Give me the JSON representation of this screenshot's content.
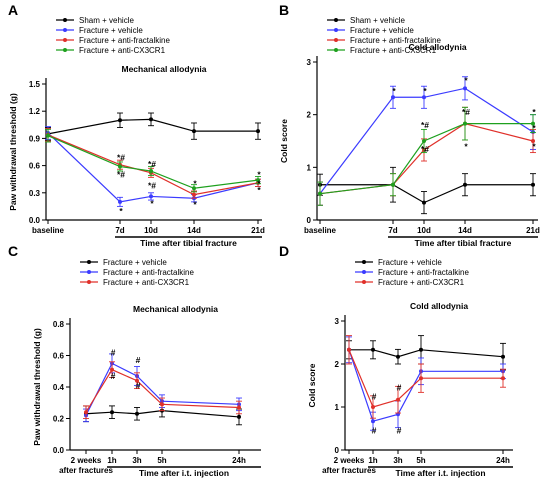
{
  "chart_data": [
    {
      "panel": "A",
      "type": "line",
      "title": "Mechanical allodynia",
      "ylabel": "Paw withdrawal threshold (g)",
      "xlabel": "Time after tibial fracture",
      "ylim": [
        0,
        1.5
      ],
      "yticks": [
        "0.0",
        "0.3",
        "0.6",
        "0.9",
        "1.2",
        "1.5"
      ],
      "x_labels": [
        "baseline",
        "7d",
        "10d",
        "14d",
        "21d"
      ],
      "legend": "top-left",
      "series": [
        {
          "name": "Sham + vehicle",
          "color": "#000000",
          "marker": "circle",
          "x": [
            0,
            7,
            10,
            14,
            21
          ],
          "y": [
            0.95,
            1.1,
            1.11,
            0.98,
            0.98
          ],
          "err": [
            0.07,
            0.08,
            0.07,
            0.09,
            0.09
          ]
        },
        {
          "name": "Fracture + vehicle",
          "color": "#3b3bff",
          "marker": "circle",
          "x": [
            0,
            7,
            10,
            14,
            21
          ],
          "y": [
            0.96,
            0.2,
            0.26,
            0.24,
            0.41
          ],
          "err": [
            0.07,
            0.05,
            0.04,
            0.04,
            0.04
          ]
        },
        {
          "name": "Fracture + anti-fractalkine",
          "color": "#e0302a",
          "marker": "circle",
          "x": [
            0,
            7,
            10,
            14,
            21
          ],
          "y": [
            0.94,
            0.61,
            0.52,
            0.28,
            0.41
          ],
          "err": [
            0.07,
            0.05,
            0.05,
            0.04,
            0.04
          ]
        },
        {
          "name": "Fracture + anti-CX3CR1",
          "color": "#1ea01e",
          "marker": "circle",
          "x": [
            0,
            7,
            10,
            14,
            21
          ],
          "y": [
            0.93,
            0.59,
            0.54,
            0.35,
            0.44
          ],
          "err": [
            0.07,
            0.05,
            0.05,
            0.04,
            0.04
          ]
        }
      ],
      "annotations": [
        {
          "text": "*#",
          "x": 7,
          "y": 0.69
        },
        {
          "text": "*#",
          "x": 7,
          "y": 0.5
        },
        {
          "text": "*",
          "x": 7,
          "y": 0.1
        },
        {
          "text": "*#",
          "x": 10,
          "y": 0.62
        },
        {
          "text": "*#",
          "x": 10,
          "y": 0.38
        },
        {
          "text": "*",
          "x": 10,
          "y": 0.18
        },
        {
          "text": "*",
          "x": 14,
          "y": 0.4
        },
        {
          "text": "*",
          "x": 14,
          "y": 0.17
        },
        {
          "text": "*",
          "x": 21,
          "y": 0.5
        },
        {
          "text": "*",
          "x": 21,
          "y": 0.4
        },
        {
          "text": "*",
          "x": 21,
          "y": 0.33
        }
      ]
    },
    {
      "panel": "B",
      "type": "line",
      "title": "Cold allodynia",
      "ylabel": "Cold score",
      "xlabel": "Time after tibial fracture",
      "ylim": [
        0,
        3
      ],
      "yticks": [
        "0",
        "1",
        "2",
        "3"
      ],
      "x_labels": [
        "baseline",
        "7d",
        "10d",
        "14d",
        "21d"
      ],
      "legend": "top-left",
      "series": [
        {
          "name": "Sham + vehicle",
          "color": "#000000",
          "marker": "circle",
          "x": [
            0,
            7,
            10,
            14,
            21
          ],
          "y": [
            0.67,
            0.67,
            0.33,
            0.67,
            0.67
          ],
          "err": [
            0.2,
            0.33,
            0.21,
            0.21,
            0.21
          ]
        },
        {
          "name": "Fracture + vehicle",
          "color": "#3b3bff",
          "marker": "circle",
          "x": [
            0,
            7,
            10,
            14,
            21
          ],
          "y": [
            0.5,
            2.33,
            2.33,
            2.5,
            1.67
          ],
          "err": [
            0.22,
            0.21,
            0.21,
            0.22,
            0.33
          ]
        },
        {
          "name": "Fracture + anti-fractalkine",
          "color": "#e0302a",
          "marker": "circle",
          "x": [
            0,
            7,
            10,
            14,
            21
          ],
          "y": [
            0.5,
            0.67,
            1.33,
            1.83,
            1.5
          ],
          "err": [
            0.22,
            0.21,
            0.21,
            0.31,
            0.22
          ]
        },
        {
          "name": "Fracture + anti-CX3CR1",
          "color": "#1ea01e",
          "marker": "circle",
          "x": [
            0,
            7,
            10,
            14,
            21
          ],
          "y": [
            0.5,
            0.67,
            1.5,
            1.83,
            1.83
          ],
          "err": [
            0.22,
            0.21,
            0.22,
            0.31,
            0.17
          ]
        }
      ],
      "annotations": [
        {
          "text": "*",
          "x": 7,
          "y": 2.45
        },
        {
          "text": "*",
          "x": 10,
          "y": 2.45
        },
        {
          "text": "*",
          "x": 14,
          "y": 2.65
        },
        {
          "text": "*#",
          "x": 10,
          "y": 1.8
        },
        {
          "text": "*#",
          "x": 10,
          "y": 1.35
        },
        {
          "text": "*#",
          "x": 14,
          "y": 2.05
        },
        {
          "text": "*",
          "x": 14,
          "y": 1.4
        },
        {
          "text": "*",
          "x": 21,
          "y": 2.05
        },
        {
          "text": "*",
          "x": 21,
          "y": 1.75
        },
        {
          "text": "*",
          "x": 21,
          "y": 1.4
        }
      ]
    },
    {
      "panel": "C",
      "type": "line",
      "title": "Mechanical allodynia",
      "ylabel": "Paw withdrawal threshold (g)",
      "xlabel": "Time after i.t. injection",
      "ylim": [
        0,
        0.8
      ],
      "yticks": [
        "0.0",
        "0.2",
        "0.4",
        "0.6",
        "0.8"
      ],
      "x_labels": [
        "2 weeks\nafter fractures",
        "1h",
        "3h",
        "5h",
        "24h"
      ],
      "legend": "top-left",
      "series": [
        {
          "name": "Fracture + vehicle",
          "color": "#000000",
          "marker": "circle",
          "x": [
            0,
            1,
            3,
            5,
            24
          ],
          "y": [
            0.23,
            0.24,
            0.23,
            0.25,
            0.21
          ],
          "err": [
            0.05,
            0.04,
            0.04,
            0.04,
            0.05
          ]
        },
        {
          "name": "Fracture + anti-fractalkine",
          "color": "#3b3bff",
          "marker": "circle",
          "x": [
            0,
            1,
            3,
            5,
            24
          ],
          "y": [
            0.22,
            0.55,
            0.47,
            0.31,
            0.29
          ],
          "err": [
            0.04,
            0.06,
            0.06,
            0.04,
            0.04
          ]
        },
        {
          "name": "Fracture + anti-CX3CR1",
          "color": "#e0302a",
          "marker": "circle",
          "x": [
            0,
            1,
            3,
            5,
            24
          ],
          "y": [
            0.24,
            0.51,
            0.44,
            0.29,
            0.27
          ],
          "err": [
            0.04,
            0.05,
            0.05,
            0.04,
            0.04
          ]
        }
      ],
      "annotations": [
        {
          "text": "#",
          "x": 1,
          "y": 0.62
        },
        {
          "text": "#",
          "x": 1,
          "y": 0.47
        },
        {
          "text": "#",
          "x": 3,
          "y": 0.57
        },
        {
          "text": "#",
          "x": 3,
          "y": 0.41
        }
      ]
    },
    {
      "panel": "D",
      "type": "line",
      "title": "Cold allodynia",
      "ylabel": "Cold score",
      "xlabel": "Time after i.t. injection",
      "ylim": [
        0,
        3
      ],
      "yticks": [
        "0",
        "1",
        "2",
        "3"
      ],
      "x_labels": [
        "2 weeks\nafter fractures",
        "1h",
        "3h",
        "5h",
        "24h"
      ],
      "legend": "top-left",
      "series": [
        {
          "name": "Fracture + vehicle",
          "color": "#000000",
          "marker": "circle",
          "x": [
            0,
            1,
            3,
            5,
            24
          ],
          "y": [
            2.33,
            2.33,
            2.17,
            2.33,
            2.17
          ],
          "err": [
            0.21,
            0.21,
            0.17,
            0.33,
            0.31
          ]
        },
        {
          "name": "Fracture + anti-fractalkine",
          "color": "#3b3bff",
          "marker": "circle",
          "x": [
            0,
            1,
            3,
            5,
            24
          ],
          "y": [
            2.33,
            0.67,
            0.83,
            1.83,
            1.83
          ],
          "err": [
            0.3,
            0.21,
            0.31,
            0.31,
            0.17
          ]
        },
        {
          "name": "Fracture + anti-CX3CR1",
          "color": "#e0302a",
          "marker": "circle",
          "x": [
            0,
            1,
            3,
            5,
            24
          ],
          "y": [
            2.33,
            1.0,
            1.17,
            1.67,
            1.67
          ],
          "err": [
            0.33,
            0.26,
            0.31,
            0.33,
            0.21
          ]
        }
      ],
      "annotations": [
        {
          "text": "#",
          "x": 1,
          "y": 1.25
        },
        {
          "text": "#",
          "x": 1,
          "y": 0.45
        },
        {
          "text": "#",
          "x": 3,
          "y": 1.45
        },
        {
          "text": "#",
          "x": 3,
          "y": 0.45
        }
      ]
    }
  ]
}
